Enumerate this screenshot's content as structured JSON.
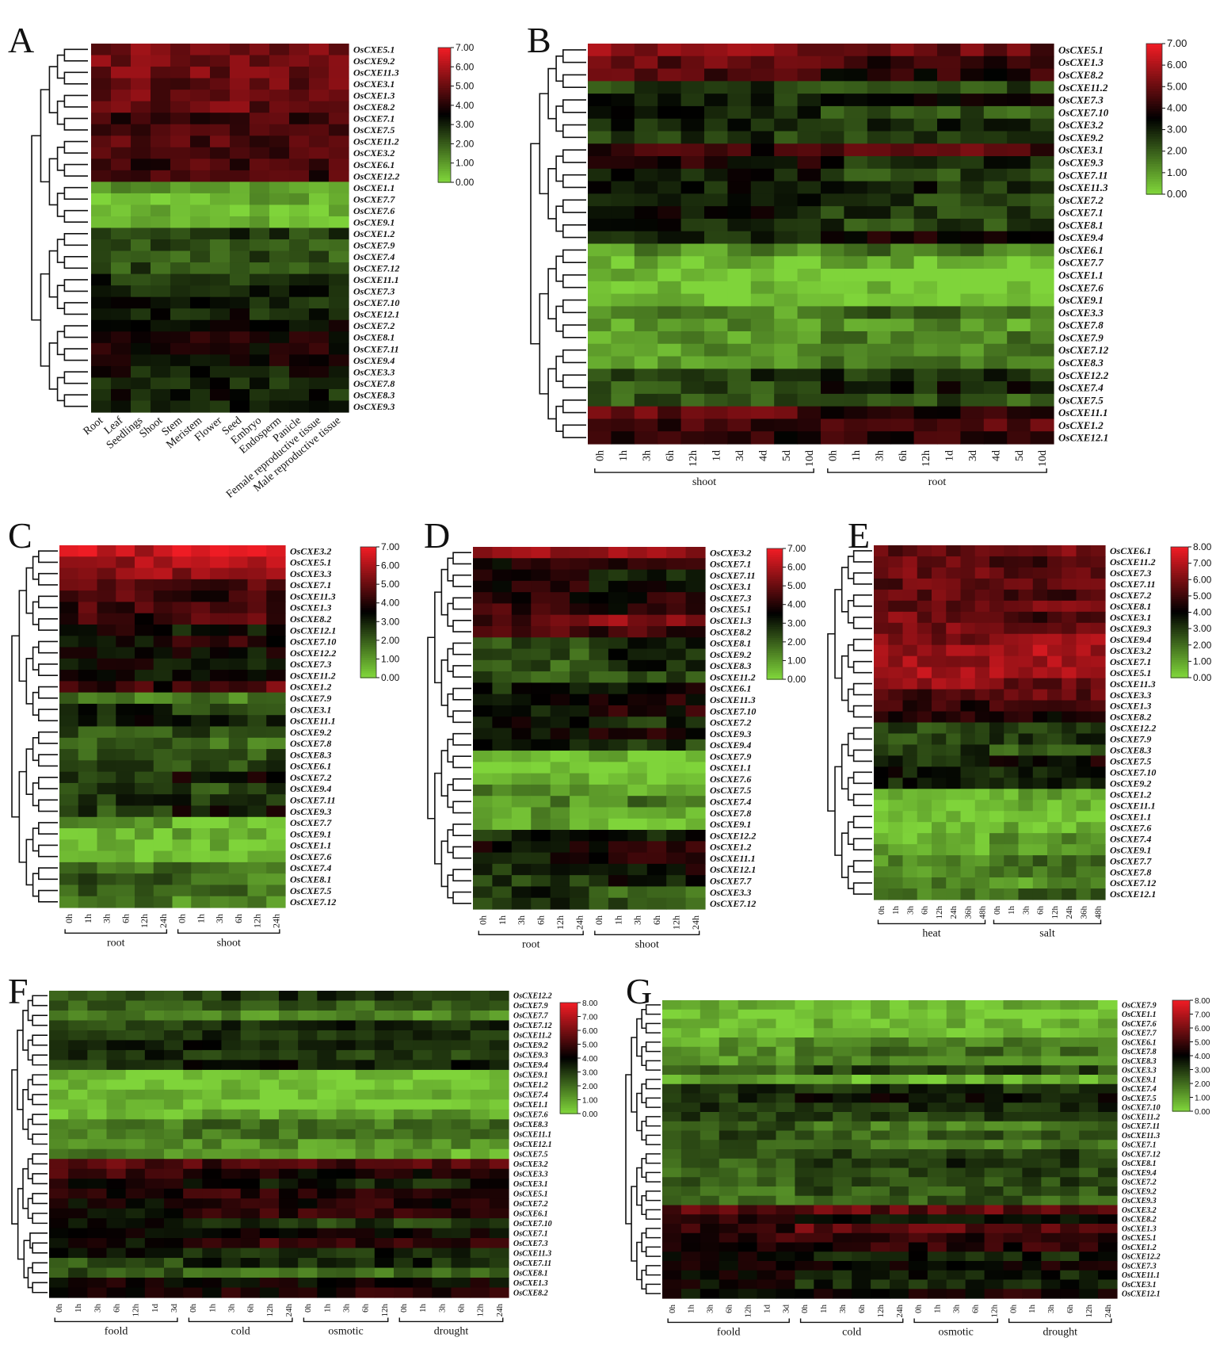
{
  "figure": {
    "colors": {
      "low": "#7fd43a",
      "mid": "#000000",
      "high": "#ee1c24"
    }
  },
  "chart_data": [
    {
      "panel": "A",
      "type": "heatmap",
      "rows": [
        "OsCXE5.1",
        "OsCXE9.2",
        "OsCXE11.3",
        "OsCXE3.1",
        "OsCXE1.3",
        "OsCXE8.2",
        "OsCXE7.1",
        "OsCXE7.5",
        "OsCXE11.2",
        "OsCXE3.2",
        "OsCXE6.1",
        "OsCXE12.2",
        "OsCXE1.1",
        "OsCXE7.7",
        "OsCXE7.6",
        "OsCXE9.1",
        "OsCXE1.2",
        "OsCXE7.9",
        "OsCXE7.4",
        "OsCXE7.12",
        "OsCXE11.1",
        "OsCXE7.3",
        "OsCXE7.10",
        "OsCXE12.1",
        "OsCXE7.2",
        "OsCXE8.1",
        "OsCXE7.11",
        "OsCXE9.4",
        "OsCXE3.3",
        "OsCXE7.8",
        "OsCXE8.3",
        "OsCXE9.3"
      ],
      "columns": [
        "Root",
        "Leaf",
        "Seedlings",
        "Shoot",
        "Stem",
        "Meristem",
        "Flower",
        "Seed",
        "Embryo",
        "Endosperm",
        "Panicle",
        "Female reproductive tissue",
        "Male reproductive tissue"
      ],
      "groups": [],
      "scale_ticks": [
        "7.00",
        "6.00",
        "5.00",
        "4.00",
        "3.00",
        "2.00",
        "1.00",
        "0.00"
      ],
      "vmin": 0,
      "vmax": 7,
      "values_profile": [
        5.4,
        5.2,
        5.2,
        5.0,
        5.0,
        5.0,
        4.4,
        4.4,
        4.6,
        4.6,
        4.4,
        4.4,
        0.8,
        0.6,
        0.4,
        0.4,
        2.6,
        2.3,
        2.2,
        2.3,
        2.8,
        3.0,
        3.0,
        3.0,
        3.6,
        3.8,
        3.7,
        3.5,
        3.2,
        3.0,
        3.0,
        3.1
      ]
    },
    {
      "panel": "B",
      "type": "heatmap",
      "rows": [
        "OsCXE5.1",
        "OsCXE1.3",
        "OsCXE8.2",
        "OsCXE11.2",
        "OsCXE7.3",
        "OsCXE7.10",
        "OsCXE3.2",
        "OsCXE9.2",
        "OsCXE3.1",
        "OsCXE9.3",
        "OsCXE7.11",
        "OsCXE11.3",
        "OsCXE7.2",
        "OsCXE7.1",
        "OsCXE8.1",
        "OsCXE9.4",
        "OsCXE6.1",
        "OsCXE7.7",
        "OsCXE1.1",
        "OsCXE7.6",
        "OsCXE9.1",
        "OsCXE3.3",
        "OsCXE7.8",
        "OsCXE7.9",
        "OsCXE7.12",
        "OsCXE8.3",
        "OsCXE12.2",
        "OsCXE7.4",
        "OsCXE7.5",
        "OsCXE11.1",
        "OsCXE1.2",
        "OsCXE12.1"
      ],
      "columns": [
        "0h",
        "1h",
        "3h",
        "6h",
        "12h",
        "1d",
        "3d",
        "4d",
        "5d",
        "10d",
        "0h",
        "1h",
        "3h",
        "6h",
        "12h",
        "1d",
        "3d",
        "4d",
        "5d",
        "10d"
      ],
      "groups": [
        {
          "label": "shoot",
          "span": 10
        },
        {
          "label": "root",
          "span": 10
        }
      ],
      "scale_ticks": [
        "7.00",
        "6.00",
        "5.00",
        "4.00",
        "3.00",
        "2.00",
        "1.00",
        "0.00"
      ],
      "vmin": 0,
      "vmax": 7,
      "values_profile": [
        5.5,
        4.8,
        4.6,
        2.6,
        2.8,
        3.0,
        2.8,
        2.6,
        4.2,
        3.8,
        3.0,
        3.0,
        3.4,
        3.2,
        3.0,
        3.0,
        1.2,
        0.4,
        0.3,
        0.3,
        0.3,
        1.2,
        1.0,
        1.0,
        1.0,
        1.0,
        2.6,
        2.2,
        2.2,
        4.8,
        4.4,
        4.0
      ]
    },
    {
      "panel": "C",
      "type": "heatmap",
      "rows": [
        "OsCXE3.2",
        "OsCXE5.1",
        "OsCXE3.3",
        "OsCXE7.1",
        "OsCXE11.3",
        "OsCXE1.3",
        "OsCXE8.2",
        "OsCXE12.1",
        "OsCXE7.10",
        "OsCXE12.2",
        "OsCXE7.3",
        "OsCXE11.2",
        "OsCXE1.2",
        "OsCXE7.9",
        "OsCXE3.1",
        "OsCXE11.1",
        "OsCXE9.2",
        "OsCXE7.8",
        "OsCXE8.3",
        "OsCXE6.1",
        "OsCXE7.2",
        "OsCXE9.4",
        "OsCXE7.11",
        "OsCXE9.3",
        "OsCXE7.7",
        "OsCXE9.1",
        "OsCXE1.1",
        "OsCXE7.6",
        "OsCXE7.4",
        "OsCXE8.1",
        "OsCXE7.5",
        "OsCXE7.12"
      ],
      "columns": [
        "0h",
        "1h",
        "3h",
        "6h",
        "12h",
        "24h",
        "0h",
        "1h",
        "3h",
        "6h",
        "12h",
        "24h"
      ],
      "groups": [
        {
          "label": "root",
          "span": 6
        },
        {
          "label": "shoot",
          "span": 6
        }
      ],
      "scale_ticks": [
        "7.00",
        "6.00",
        "5.00",
        "4.00",
        "3.00",
        "2.00",
        "1.00",
        "0.00"
      ],
      "vmin": 0,
      "vmax": 7,
      "values_profile": [
        6.4,
        5.8,
        5.6,
        5.0,
        4.8,
        4.4,
        4.2,
        3.6,
        3.4,
        3.4,
        3.4,
        3.2,
        4.2,
        1.6,
        3.0,
        3.0,
        2.2,
        2.0,
        2.0,
        2.6,
        2.8,
        2.6,
        2.6,
        2.4,
        0.8,
        0.4,
        0.3,
        0.3,
        1.8,
        2.0,
        1.8,
        1.6
      ]
    },
    {
      "panel": "D",
      "type": "heatmap",
      "rows": [
        "OsCXE3.2",
        "OsCXE7.1",
        "OsCXE7.11",
        "OsCXE3.1",
        "OsCXE7.3",
        "OsCXE5.1",
        "OsCXE1.3",
        "OsCXE8.2",
        "OsCXE8.1",
        "OsCXE9.2",
        "OsCXE8.3",
        "OsCXE11.2",
        "OsCXE6.1",
        "OsCXE11.3",
        "OsCXE7.10",
        "OsCXE7.2",
        "OsCXE9.3",
        "OsCXE9.4",
        "OsCXE7.9",
        "OsCXE1.1",
        "OsCXE7.6",
        "OsCXE7.5",
        "OsCXE7.4",
        "OsCXE7.8",
        "OsCXE9.1",
        "OsCXE12.2",
        "OsCXE1.2",
        "OsCXE11.1",
        "OsCXE12.1",
        "OsCXE7.7",
        "OsCXE3.3",
        "OsCXE7.12"
      ],
      "columns": [
        "0h",
        "1h",
        "3h",
        "6h",
        "12h",
        "24h",
        "0h",
        "1h",
        "3h",
        "6h",
        "12h",
        "24h"
      ],
      "groups": [
        {
          "label": "root",
          "span": 6
        },
        {
          "label": "shoot",
          "span": 6
        }
      ],
      "scale_ticks": [
        "7.00",
        "6.00",
        "5.00",
        "4.00",
        "3.00",
        "2.00",
        "1.00",
        "0.00"
      ],
      "vmin": 0,
      "vmax": 7,
      "values_profile": [
        5.8,
        3.8,
        3.8,
        4.0,
        4.0,
        4.4,
        4.8,
        4.6,
        2.2,
        2.2,
        2.0,
        2.0,
        3.0,
        3.2,
        3.2,
        3.2,
        3.2,
        3.0,
        0.4,
        0.3,
        0.3,
        1.2,
        1.2,
        1.0,
        1.0,
        3.0,
        3.4,
        3.2,
        2.8,
        2.6,
        2.8,
        2.6
      ]
    },
    {
      "panel": "E",
      "type": "heatmap",
      "rows": [
        "OsCXE6.1",
        "OsCXE11.2",
        "OsCXE7.3",
        "OsCXE7.11",
        "OsCXE7.2",
        "OsCXE8.1",
        "OsCXE3.1",
        "OsCXE9.3",
        "OsCXE9.4",
        "OsCXE3.2",
        "OsCXE7.1",
        "OsCXE5.1",
        "OsCXE11.3",
        "OsCXE3.3",
        "OsCXE1.3",
        "OsCXE8.2",
        "OsCXE12.2",
        "OsCXE7.9",
        "OsCXE8.3",
        "OsCXE7.5",
        "OsCXE7.10",
        "OsCXE9.2",
        "OsCXE1.2",
        "OsCXE11.1",
        "OsCXE1.1",
        "OsCXE7.6",
        "OsCXE7.4",
        "OsCXE9.1",
        "OsCXE7.7",
        "OsCXE7.8",
        "OsCXE7.12",
        "OsCXE12.1"
      ],
      "columns": [
        "0h",
        "1h",
        "3h",
        "6h",
        "12h",
        "24h",
        "36h",
        "48h",
        "0h",
        "1h",
        "3h",
        "6h",
        "12h",
        "24h",
        "36h",
        "48h"
      ],
      "groups": [
        {
          "label": "heat",
          "span": 8
        },
        {
          "label": "salt",
          "span": 8
        }
      ],
      "scale_ticks": [
        "8.00",
        "7.00",
        "6.00",
        "5.00",
        "4.00",
        "3.00",
        "2.00",
        "1.00",
        "0.00"
      ],
      "vmin": 0,
      "vmax": 8,
      "values_profile": [
        5.6,
        5.8,
        5.8,
        5.6,
        5.6,
        5.8,
        6.0,
        6.0,
        6.0,
        6.6,
        6.6,
        6.8,
        6.6,
        5.0,
        4.8,
        4.8,
        2.6,
        2.6,
        3.0,
        3.2,
        3.6,
        3.4,
        0.6,
        0.5,
        0.4,
        0.4,
        0.6,
        0.8,
        1.4,
        1.4,
        1.6,
        1.6
      ]
    },
    {
      "panel": "F",
      "type": "heatmap",
      "rows": [
        "OsCXE12.2",
        "OsCXE7.9",
        "OsCXE7.7",
        "OsCXE7.12",
        "OsCXE11.2",
        "OsCXE9.2",
        "OsCXE9.3",
        "OsCXE9.4",
        "OsCXE9.1",
        "OsCXE1.2",
        "OsCXE7.4",
        "OsCXE1.1",
        "OsCXE7.6",
        "OsCXE8.3",
        "OsCXE11.1",
        "OsCXE12.1",
        "OsCXE7.5",
        "OsCXE3.2",
        "OsCXE3.3",
        "OsCXE3.1",
        "OsCXE5.1",
        "OsCXE7.2",
        "OsCXE6.1",
        "OsCXE7.10",
        "OsCXE7.1",
        "OsCXE7.3",
        "OsCXE11.3",
        "OsCXE7.11",
        "OsCXE8.1",
        "OsCXE1.3",
        "OsCXE8.2"
      ],
      "columns": [
        "0h",
        "1h",
        "3h",
        "6h",
        "12h",
        "1d",
        "3d",
        "0h",
        "1h",
        "3h",
        "6h",
        "12h",
        "24h",
        "0h",
        "1h",
        "3h",
        "6h",
        "12h",
        "0h",
        "1h",
        "3h",
        "6h",
        "12h",
        "24h"
      ],
      "groups": [
        {
          "label": "foold",
          "span": 7
        },
        {
          "label": "cold",
          "span": 6
        },
        {
          "label": "osmotic",
          "span": 5
        },
        {
          "label": "drought",
          "span": 6
        }
      ],
      "scale_ticks": [
        "8.00",
        "7.00",
        "6.00",
        "5.00",
        "4.00",
        "3.00",
        "2.00",
        "1.00",
        "0.00"
      ],
      "vmin": 0,
      "vmax": 8,
      "values_profile": [
        2.6,
        2.2,
        2.0,
        2.4,
        3.0,
        3.2,
        3.2,
        3.0,
        0.4,
        0.4,
        0.6,
        0.3,
        0.3,
        1.4,
        1.4,
        1.6,
        1.6,
        5.4,
        5.0,
        4.2,
        4.4,
        4.0,
        3.8,
        3.8,
        4.0,
        4.0,
        4.0,
        2.4,
        2.4,
        4.2,
        4.4
      ]
    },
    {
      "panel": "G",
      "type": "heatmap",
      "rows": [
        "OsCXE7.9",
        "OsCXE1.1",
        "OsCXE7.6",
        "OsCXE7.7",
        "OsCXE6.1",
        "OsCXE7.8",
        "OsCXE8.3",
        "OsCXE3.3",
        "OsCXE9.1",
        "OsCXE7.4",
        "OsCXE7.5",
        "OsCXE7.10",
        "OsCXE11.2",
        "OsCXE7.11",
        "OsCXE11.3",
        "OsCXE7.1",
        "OsCXE7.12",
        "OsCXE8.1",
        "OsCXE9.4",
        "OsCXE7.2",
        "OsCXE9.2",
        "OsCXE9.3",
        "OsCXE3.2",
        "OsCXE8.2",
        "OsCXE1.3",
        "OsCXE5.1",
        "OsCXE1.2",
        "OsCXE12.2",
        "OsCXE7.3",
        "OsCXE11.1",
        "OsCXE3.1",
        "OsCXE12.1"
      ],
      "columns": [
        "0h",
        "1h",
        "3h",
        "6h",
        "12h",
        "1d",
        "3d",
        "0h",
        "1h",
        "3h",
        "6h",
        "12h",
        "24h",
        "0h",
        "1h",
        "3h",
        "6h",
        "12h",
        "0h",
        "1h",
        "3h",
        "6h",
        "12h",
        "24h"
      ],
      "groups": [
        {
          "label": "foold",
          "span": 7
        },
        {
          "label": "cold",
          "span": 6
        },
        {
          "label": "osmotic",
          "span": 5
        },
        {
          "label": "drought",
          "span": 6
        }
      ],
      "scale_ticks": [
        "8.00",
        "7.00",
        "6.00",
        "5.00",
        "4.00",
        "3.00",
        "2.00",
        "1.00",
        "0.00"
      ],
      "vmin": 0,
      "vmax": 8,
      "values_profile": [
        0.6,
        0.4,
        0.3,
        0.4,
        1.0,
        1.2,
        1.2,
        2.0,
        0.8,
        3.0,
        3.2,
        3.2,
        2.8,
        2.6,
        2.6,
        2.4,
        2.4,
        2.2,
        2.2,
        2.2,
        2.0,
        2.0,
        5.6,
        4.6,
        4.8,
        4.8,
        4.2,
        4.0,
        4.2,
        4.2,
        4.0,
        3.8
      ]
    }
  ]
}
